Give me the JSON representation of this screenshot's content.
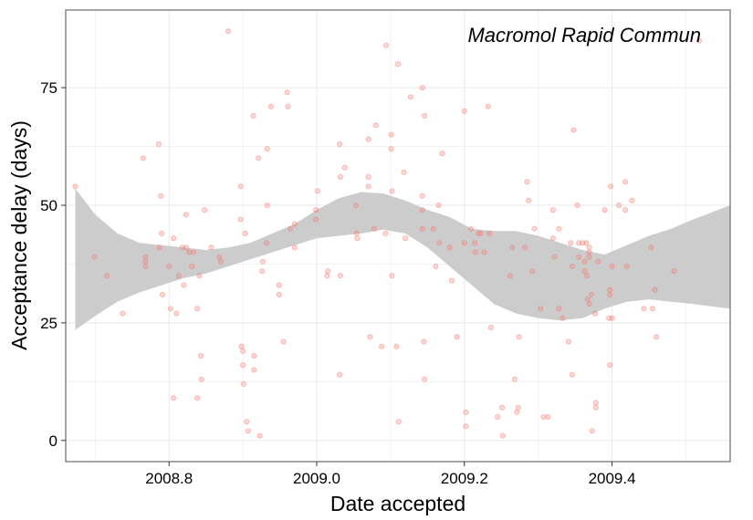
{
  "chart_data": {
    "type": "scatter",
    "annotation": "Macromol Rapid Commun",
    "xlabel": "Date accepted",
    "ylabel": "Acceptance delay (days)",
    "xlim": [
      2008.66,
      2009.56
    ],
    "ylim": [
      -4.5,
      91.5
    ],
    "x_ticks": [
      2008.8,
      2009.0,
      2009.2,
      2009.4
    ],
    "x_tick_labels": [
      "2008.8",
      "2009.0",
      "2009.2",
      "2009.4"
    ],
    "y_ticks": [
      0,
      25,
      50,
      75
    ],
    "y_tick_labels": [
      "0",
      "25",
      "50",
      "75"
    ],
    "grid": true,
    "point_color": "#F8766D",
    "band_color": "#CCCCCC",
    "panel_border_color": "#7F7F7F",
    "grid_color": "#EBEBEB",
    "points": [
      [
        2008.673,
        54
      ],
      [
        2008.699,
        39
      ],
      [
        2008.716,
        35
      ],
      [
        2008.737,
        27
      ],
      [
        2008.765,
        60
      ],
      [
        2008.768,
        37
      ],
      [
        2008.768,
        38
      ],
      [
        2008.768,
        39
      ],
      [
        2008.786,
        63
      ],
      [
        2008.787,
        41
      ],
      [
        2008.789,
        52
      ],
      [
        2008.79,
        44
      ],
      [
        2008.791,
        31
      ],
      [
        2008.8,
        37
      ],
      [
        2008.802,
        28
      ],
      [
        2008.806,
        43
      ],
      [
        2008.806,
        9
      ],
      [
        2008.81,
        27
      ],
      [
        2008.813,
        35
      ],
      [
        2008.818,
        41
      ],
      [
        2008.82,
        33
      ],
      [
        2008.823,
        41
      ],
      [
        2008.823,
        48
      ],
      [
        2008.827,
        40
      ],
      [
        2008.831,
        37
      ],
      [
        2008.833,
        40
      ],
      [
        2008.838,
        28
      ],
      [
        2008.838,
        9
      ],
      [
        2008.841,
        35
      ],
      [
        2008.843,
        18
      ],
      [
        2008.844,
        13
      ],
      [
        2008.848,
        49
      ],
      [
        2008.857,
        41
      ],
      [
        2008.868,
        39
      ],
      [
        2008.87,
        38
      ],
      [
        2008.88,
        87
      ],
      [
        2008.897,
        47
      ],
      [
        2008.897,
        54
      ],
      [
        2008.898,
        20
      ],
      [
        2008.9,
        19
      ],
      [
        2008.9,
        16
      ],
      [
        2008.901,
        12
      ],
      [
        2008.903,
        44
      ],
      [
        2008.905,
        4
      ],
      [
        2008.907,
        2
      ],
      [
        2008.914,
        69
      ],
      [
        2008.915,
        18
      ],
      [
        2008.915,
        15
      ],
      [
        2008.921,
        60
      ],
      [
        2008.923,
        1
      ],
      [
        2008.926,
        36
      ],
      [
        2008.927,
        38
      ],
      [
        2008.932,
        42
      ],
      [
        2008.933,
        62
      ],
      [
        2008.933,
        50
      ],
      [
        2008.938,
        71
      ],
      [
        2008.949,
        33
      ],
      [
        2008.949,
        31
      ],
      [
        2008.955,
        21
      ],
      [
        2008.96,
        74
      ],
      [
        2008.961,
        71
      ],
      [
        2008.964,
        45
      ],
      [
        2008.97,
        46
      ],
      [
        2008.97,
        41
      ],
      [
        2008.999,
        47
      ],
      [
        2008.999,
        49
      ],
      [
        2009.001,
        53
      ],
      [
        2009.014,
        35
      ],
      [
        2009.015,
        36
      ],
      [
        2009.031,
        63
      ],
      [
        2009.031,
        14
      ],
      [
        2009.032,
        56
      ],
      [
        2009.032,
        35
      ],
      [
        2009.038,
        58
      ],
      [
        2009.053,
        50
      ],
      [
        2009.054,
        44
      ],
      [
        2009.055,
        43
      ],
      [
        2009.07,
        56
      ],
      [
        2009.07,
        54
      ],
      [
        2009.07,
        64
      ],
      [
        2009.072,
        22
      ],
      [
        2009.078,
        45
      ],
      [
        2009.08,
        67
      ],
      [
        2009.088,
        20
      ],
      [
        2009.093,
        44
      ],
      [
        2009.094,
        84
      ],
      [
        2009.101,
        65
      ],
      [
        2009.101,
        62
      ],
      [
        2009.102,
        53
      ],
      [
        2009.102,
        35
      ],
      [
        2009.108,
        20
      ],
      [
        2009.11,
        80
      ],
      [
        2009.111,
        4
      ],
      [
        2009.118,
        57
      ],
      [
        2009.12,
        43
      ],
      [
        2009.127,
        73
      ],
      [
        2009.143,
        75
      ],
      [
        2009.143,
        52
      ],
      [
        2009.143,
        45
      ],
      [
        2009.143,
        49
      ],
      [
        2009.145,
        21
      ],
      [
        2009.146,
        69
      ],
      [
        2009.146,
        13
      ],
      [
        2009.158,
        45
      ],
      [
        2009.161,
        37
      ],
      [
        2009.165,
        50
      ],
      [
        2009.166,
        42
      ],
      [
        2009.17,
        61
      ],
      [
        2009.18,
        41
      ],
      [
        2009.183,
        34
      ],
      [
        2009.19,
        22
      ],
      [
        2009.2,
        70
      ],
      [
        2009.2,
        42
      ],
      [
        2009.202,
        6
      ],
      [
        2009.202,
        3
      ],
      [
        2009.209,
        45
      ],
      [
        2009.214,
        42
      ],
      [
        2009.215,
        40
      ],
      [
        2009.219,
        44
      ],
      [
        2009.222,
        44
      ],
      [
        2009.227,
        40
      ],
      [
        2009.232,
        71
      ],
      [
        2009.234,
        44
      ],
      [
        2009.236,
        24
      ],
      [
        2009.245,
        5
      ],
      [
        2009.251,
        7
      ],
      [
        2009.252,
        1
      ],
      [
        2009.262,
        35
      ],
      [
        2009.265,
        41
      ],
      [
        2009.268,
        13
      ],
      [
        2009.271,
        6
      ],
      [
        2009.273,
        7
      ],
      [
        2009.274,
        22
      ],
      [
        2009.282,
        41
      ],
      [
        2009.285,
        55
      ],
      [
        2009.287,
        51
      ],
      [
        2009.292,
        36
      ],
      [
        2009.295,
        45
      ],
      [
        2009.303,
        28
      ],
      [
        2009.307,
        5
      ],
      [
        2009.313,
        5
      ],
      [
        2009.32,
        43
      ],
      [
        2009.32,
        49
      ],
      [
        2009.322,
        39
      ],
      [
        2009.328,
        45
      ],
      [
        2009.328,
        28
      ],
      [
        2009.333,
        26
      ],
      [
        2009.341,
        21
      ],
      [
        2009.344,
        42
      ],
      [
        2009.346,
        14
      ],
      [
        2009.346,
        37
      ],
      [
        2009.348,
        66
      ],
      [
        2009.353,
        50
      ],
      [
        2009.355,
        39
      ],
      [
        2009.355,
        42
      ],
      [
        2009.36,
        42
      ],
      [
        2009.363,
        38
      ],
      [
        2009.363,
        36
      ],
      [
        2009.365,
        42
      ],
      [
        2009.366,
        35
      ],
      [
        2009.367,
        30
      ],
      [
        2009.369,
        40
      ],
      [
        2009.369,
        41
      ],
      [
        2009.369,
        39
      ],
      [
        2009.369,
        29
      ],
      [
        2009.372,
        31
      ],
      [
        2009.373,
        2
      ],
      [
        2009.377,
        27
      ],
      [
        2009.378,
        8
      ],
      [
        2009.378,
        7
      ],
      [
        2009.381,
        38
      ],
      [
        2009.39,
        49
      ],
      [
        2009.396,
        26
      ],
      [
        2009.397,
        16
      ],
      [
        2009.397,
        32
      ],
      [
        2009.397,
        31
      ],
      [
        2009.398,
        54
      ],
      [
        2009.4,
        37
      ],
      [
        2009.4,
        26
      ],
      [
        2009.409,
        50
      ],
      [
        2009.418,
        55
      ],
      [
        2009.418,
        49
      ],
      [
        2009.42,
        37
      ],
      [
        2009.427,
        51
      ],
      [
        2009.443,
        28
      ],
      [
        2009.453,
        41
      ],
      [
        2009.455,
        28
      ],
      [
        2009.458,
        32
      ],
      [
        2009.46,
        22
      ],
      [
        2009.484,
        36
      ],
      [
        2009.518,
        85
      ]
    ],
    "smooth": {
      "x": [
        2008.673,
        2008.7,
        2008.73,
        2008.76,
        2008.79,
        2008.82,
        2008.85,
        2008.88,
        2008.91,
        2008.94,
        2008.97,
        2009.0,
        2009.03,
        2009.06,
        2009.09,
        2009.12,
        2009.15,
        2009.18,
        2009.21,
        2009.24,
        2009.27,
        2009.3,
        2009.33,
        2009.36,
        2009.39,
        2009.42,
        2009.45,
        2009.48,
        2009.51,
        2009.56
      ],
      "lower": [
        23.5,
        26.5,
        29.5,
        31.5,
        33,
        34.5,
        35.5,
        37,
        38.5,
        40,
        41.5,
        43,
        43.5,
        44,
        44.8,
        44,
        41,
        37,
        33,
        29,
        27,
        26,
        25.5,
        26,
        28,
        29.5,
        30,
        29.5,
        29,
        28
      ],
      "upper": [
        53.5,
        48,
        44,
        42,
        41.5,
        41,
        40.5,
        41,
        42,
        44,
        46,
        49,
        51.5,
        52.8,
        52.5,
        51,
        49,
        47.5,
        45,
        44.5,
        44.5,
        43.5,
        42,
        40.5,
        39.5,
        41.5,
        43.5,
        45,
        47,
        50
      ]
    }
  }
}
